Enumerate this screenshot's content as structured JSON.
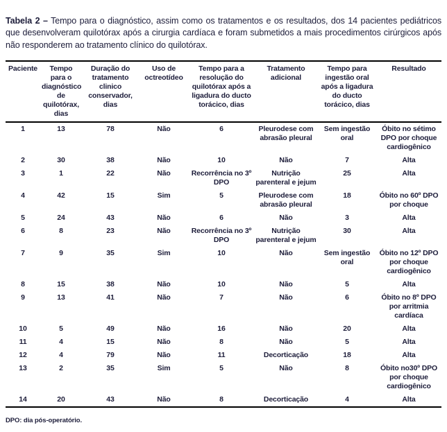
{
  "title": {
    "label": "Tabela 2 –",
    "text": "Tempo para o diagnóstico, assim como os tratamentos e os resultados, dos 14 pacientes pediátricos que desenvolveram quilotórax após a cirurgia cardíaca e foram submetidos a mais procedimentos cirúrgicos após não responderem ao tratamento clínico do quilotórax."
  },
  "table": {
    "columns": [
      "Paciente",
      "Tempo para o diagnóstico de quilotórax, dias",
      "Duração do tratamento clinico conservador, dias",
      "Uso de octreotídeo",
      "Tempo para a resolução do quilotórax após a ligadura do ducto torácico, dias",
      "Tratamento adicional",
      "Tempo para ingestão oral após a ligadura do ducto torácico, dias",
      "Resultado"
    ],
    "rows": [
      [
        "1",
        "13",
        "78",
        "Não",
        "6",
        "Pleurodese com abrasão pleural",
        "Sem ingestão oral",
        "Óbito no sétimo DPO por choque cardiogênico"
      ],
      [
        "2",
        "30",
        "38",
        "Não",
        "10",
        "Não",
        "7",
        "Alta"
      ],
      [
        "3",
        "1",
        "22",
        "Não",
        "Recorrência no 3º DPO",
        "Nutrição parenteral e jejum",
        "25",
        "Alta"
      ],
      [
        "4",
        "42",
        "15",
        "Sim",
        "5",
        "Pleurodese com abrasão pleural",
        "18",
        "Óbito no 60º DPO por choque"
      ],
      [
        "5",
        "24",
        "43",
        "Não",
        "6",
        "Não",
        "3",
        "Alta"
      ],
      [
        "6",
        "8",
        "23",
        "Não",
        "Recorrência no 3º DPO",
        "Nutrição parenteral e jejum",
        "30",
        "Alta"
      ],
      [
        "7",
        "9",
        "35",
        "Sim",
        "10",
        "Não",
        "Sem ingestão oral",
        "Óbito no 12º DPO por choque cardiogênico"
      ],
      [
        "8",
        "15",
        "38",
        "Não",
        "10",
        "Não",
        "5",
        "Alta"
      ],
      [
        "9",
        "13",
        "41",
        "Não",
        "7",
        "Não",
        "6",
        "Óbito no 8º DPO por arritmia cardíaca"
      ],
      [
        "10",
        "5",
        "49",
        "Não",
        "16",
        "Não",
        "20",
        "Alta"
      ],
      [
        "11",
        "4",
        "15",
        "Não",
        "8",
        "Não",
        "5",
        "Alta"
      ],
      [
        "12",
        "4",
        "79",
        "Não",
        "11",
        "Decorticação",
        "18",
        "Alta"
      ],
      [
        "13",
        "2",
        "35",
        "Sim",
        "5",
        "Não",
        "8",
        "Óbito no30º DPO por choque cardiogênico"
      ],
      [
        "14",
        "20",
        "43",
        "Não",
        "8",
        "Decorticação",
        "4",
        "Alta"
      ]
    ]
  },
  "footnote": "DPO: dia pós-operatório.",
  "colors": {
    "text": "#1d1d3a",
    "rule": "#000000",
    "background": "#ffffff"
  }
}
